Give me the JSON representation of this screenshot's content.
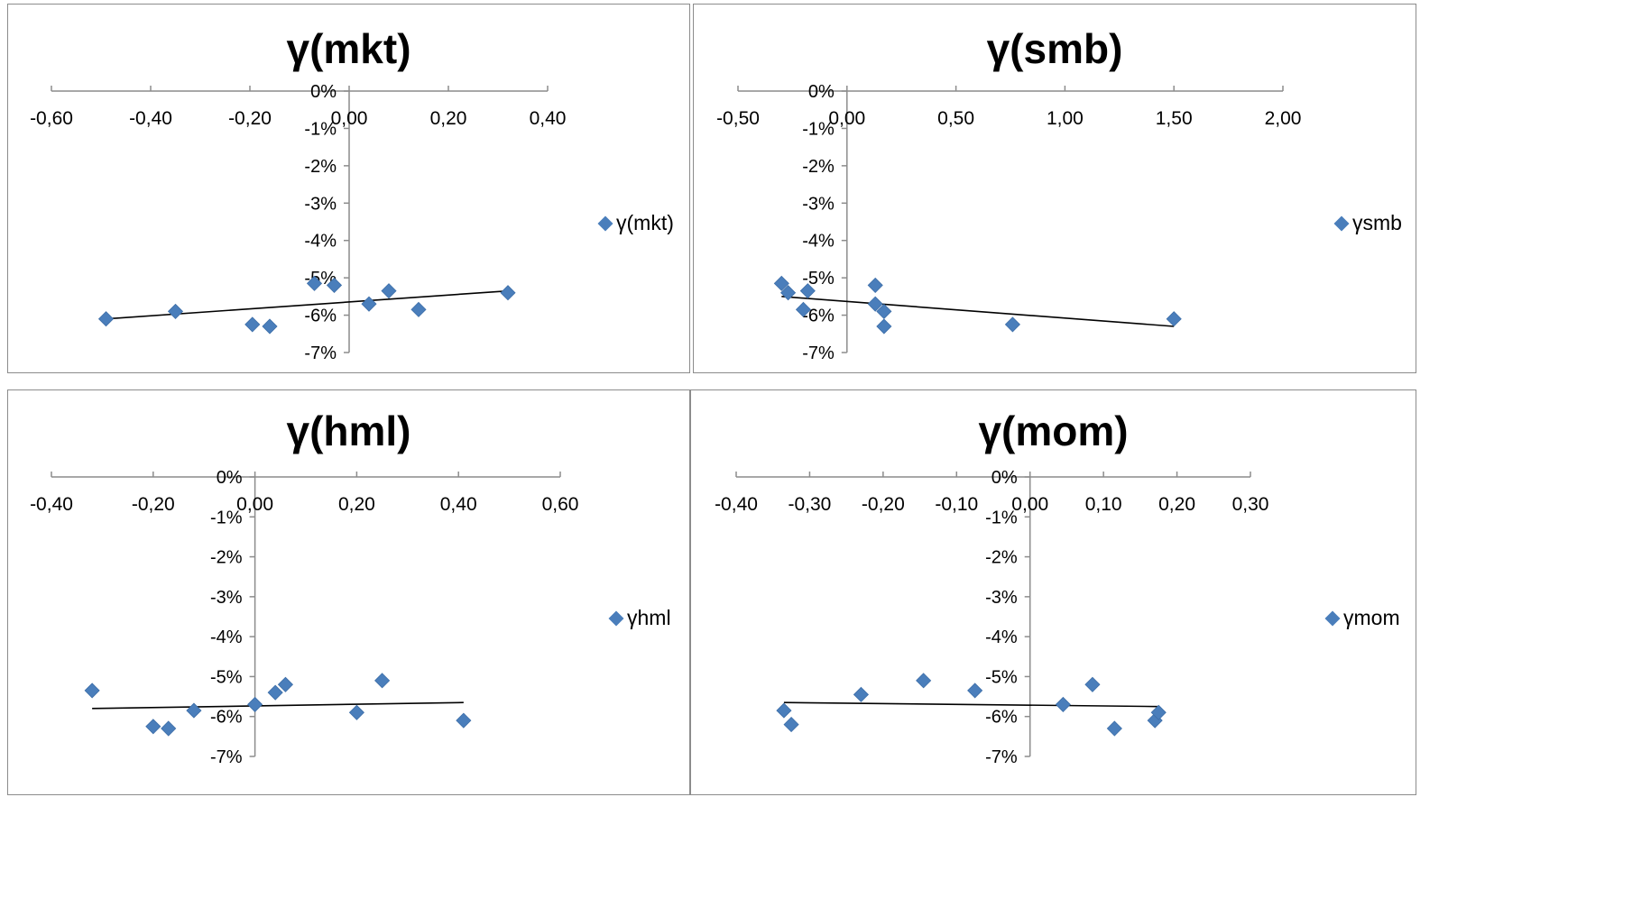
{
  "chart_data": [
    {
      "type": "scatter",
      "title": "γ(mkt)",
      "legend": "γ(mkt)",
      "xlim": [
        -0.6,
        0.4
      ],
      "xticks": [
        -0.6,
        -0.4,
        -0.2,
        0.0,
        0.2,
        0.4
      ],
      "xtick_labels": [
        "-0,60",
        "-0,40",
        "-0,20",
        "0,00",
        "0,20",
        "0,40"
      ],
      "ylim": [
        -7,
        0
      ],
      "yticks": [
        0,
        -1,
        -2,
        -3,
        -4,
        -5,
        -6,
        -7
      ],
      "ytick_labels": [
        "0%",
        "-1%",
        "-2%",
        "-3%",
        "-4%",
        "-5%",
        "-6%",
        "-7%"
      ],
      "x": [
        -0.49,
        -0.35,
        -0.195,
        -0.16,
        -0.07,
        -0.03,
        0.04,
        0.08,
        0.14,
        0.32
      ],
      "y": [
        -6.1,
        -5.9,
        -6.25,
        -6.3,
        -5.15,
        -5.2,
        -5.7,
        -5.35,
        -5.85,
        -5.4
      ],
      "trendline": {
        "x": [
          -0.49,
          0.32
        ],
        "y": [
          -6.1,
          -5.35
        ]
      }
    },
    {
      "type": "scatter",
      "title": "γ(smb)",
      "legend": "γsmb",
      "xlim": [
        -0.5,
        2.0
      ],
      "xticks": [
        -0.5,
        0.0,
        0.5,
        1.0,
        1.5,
        2.0
      ],
      "xtick_labels": [
        "-0,50",
        "0,00",
        "0,50",
        "1,00",
        "1,50",
        "2,00"
      ],
      "ylim": [
        -7,
        0
      ],
      "yticks": [
        0,
        -1,
        -2,
        -3,
        -4,
        -5,
        -6,
        -7
      ],
      "ytick_labels": [
        "0%",
        "-1%",
        "-2%",
        "-3%",
        "-4%",
        "-5%",
        "-6%",
        "-7%"
      ],
      "x": [
        -0.3,
        -0.27,
        -0.2,
        -0.18,
        0.13,
        0.13,
        0.17,
        0.17,
        0.76,
        1.5
      ],
      "y": [
        -5.15,
        -5.4,
        -5.85,
        -5.35,
        -5.2,
        -5.7,
        -5.9,
        -6.3,
        -6.25,
        -6.1
      ],
      "trendline": {
        "x": [
          -0.3,
          1.5
        ],
        "y": [
          -5.5,
          -6.3
        ]
      }
    },
    {
      "type": "scatter",
      "title": "γ(hml)",
      "legend": "γhml",
      "xlim": [
        -0.4,
        0.6
      ],
      "xticks": [
        -0.4,
        -0.2,
        0.0,
        0.2,
        0.4,
        0.6
      ],
      "xtick_labels": [
        "-0,40",
        "-0,20",
        "0,00",
        "0,20",
        "0,40",
        "0,60"
      ],
      "ylim": [
        -7,
        0
      ],
      "yticks": [
        0,
        -1,
        -2,
        -3,
        -4,
        -5,
        -6,
        -7
      ],
      "ytick_labels": [
        "0%",
        "-1%",
        "-2%",
        "-3%",
        "-4%",
        "-5%",
        "-6%",
        "-7%"
      ],
      "x": [
        -0.32,
        -0.2,
        -0.17,
        -0.12,
        0.0,
        0.04,
        0.06,
        0.2,
        0.25,
        0.41
      ],
      "y": [
        -5.35,
        -6.25,
        -6.3,
        -5.85,
        -5.7,
        -5.4,
        -5.2,
        -5.9,
        -5.1,
        -6.1
      ],
      "trendline": {
        "x": [
          -0.32,
          0.41
        ],
        "y": [
          -5.8,
          -5.65
        ]
      }
    },
    {
      "type": "scatter",
      "title": "γ(mom)",
      "legend": "γmom",
      "xlim": [
        -0.4,
        0.3
      ],
      "xticks": [
        -0.4,
        -0.3,
        -0.2,
        -0.1,
        0.0,
        0.1,
        0.2,
        0.3
      ],
      "xtick_labels": [
        "-0,40",
        "-0,30",
        "-0,20",
        "-0,10",
        "0,00",
        "0,10",
        "0,20",
        "0,30"
      ],
      "ylim": [
        -7,
        0
      ],
      "yticks": [
        0,
        -1,
        -2,
        -3,
        -4,
        -5,
        -6,
        -7
      ],
      "ytick_labels": [
        "0%",
        "-1%",
        "-2%",
        "-3%",
        "-4%",
        "-5%",
        "-6%",
        "-7%"
      ],
      "x": [
        -0.335,
        -0.325,
        -0.23,
        -0.145,
        -0.075,
        0.045,
        0.085,
        0.115,
        0.17,
        0.175
      ],
      "y": [
        -5.85,
        -6.2,
        -5.45,
        -5.1,
        -5.35,
        -5.7,
        -5.2,
        -6.3,
        -6.1,
        -5.9
      ],
      "trendline": {
        "x": [
          -0.335,
          0.175
        ],
        "y": [
          -5.65,
          -5.75
        ]
      }
    }
  ],
  "colors": {
    "marker": "#4a7ebb",
    "trendline": "#000000",
    "axis": "#8c8c8c",
    "border": "#8c8c8c"
  }
}
